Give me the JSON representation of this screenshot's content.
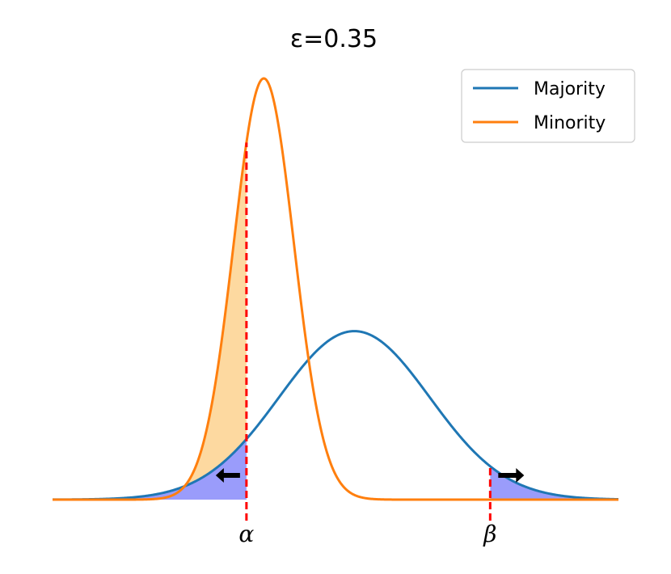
{
  "chart_data": {
    "type": "line",
    "title": "ε=0.35",
    "xlabel": "",
    "ylabel": "",
    "xlim": [
      -3.5,
      4.0
    ],
    "ylim": [
      0,
      1.0
    ],
    "grid": false,
    "legend": {
      "position": "top-right"
    },
    "series": [
      {
        "name": "Majority",
        "distribution": "normal",
        "mean": 0.5,
        "std": 1.0,
        "color": "#1f77b4"
      },
      {
        "name": "Minority",
        "distribution": "normal",
        "mean": -0.7,
        "std": 0.4,
        "color": "#ff7f0e"
      }
    ],
    "thresholds": [
      {
        "label": "α",
        "x": -0.93,
        "color": "#ff0000",
        "direction": "left"
      },
      {
        "label": "β",
        "x": 2.3,
        "color": "#ff0000",
        "direction": "right"
      }
    ],
    "shaded_regions": [
      {
        "between": [
          "Minority",
          "Majority"
        ],
        "x_range": [
          -3.5,
          -0.93
        ],
        "fill": "#fdd9a0"
      },
      {
        "between": [
          "Majority",
          "baseline"
        ],
        "x_range": [
          -3.5,
          -0.93
        ],
        "fill": "#9a9cfb"
      },
      {
        "between": [
          "Majority",
          "baseline"
        ],
        "x_range": [
          2.3,
          4.0
        ],
        "fill": "#9a9cfb"
      }
    ]
  }
}
